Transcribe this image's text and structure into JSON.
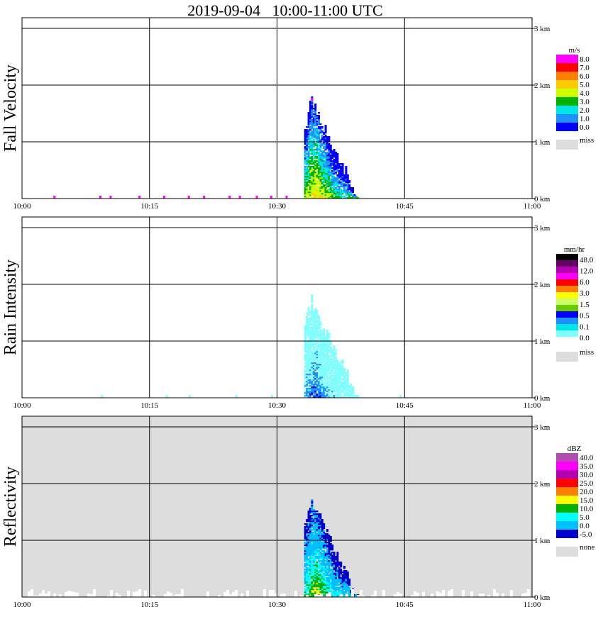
{
  "title": "2019-09-04   10:00-11:00 UTC",
  "x_ticks": [
    "10:00",
    "10:15",
    "10:30",
    "10:45",
    "11:00"
  ],
  "y_ticks": [
    "0 km",
    "1 km",
    "2 km",
    "3 km"
  ],
  "colors": {
    "missing": "#dddddd",
    "grid": "#000000",
    "background": "#ffffff"
  },
  "chart_data": [
    {
      "type": "heatmap",
      "ylabel": "Fall Velocity",
      "xlim": [
        "10:00",
        "11:00"
      ],
      "ylim": [
        0,
        3.0
      ],
      "y_units": "km",
      "grid": true,
      "background": "#ffffff",
      "colorbar": {
        "unit": "m/s",
        "labels": [
          "8.0",
          "7.0",
          "6.0",
          "5.0",
          "4.0",
          "3.0",
          "2.0",
          "1.0",
          "0.0"
        ],
        "colors": [
          "#ff00ff",
          "#ff0000",
          "#ff8000",
          "#ffcc00",
          "#ccff00",
          "#00b300",
          "#00e6e6",
          "#1e90ff",
          "#0000ff"
        ],
        "extra_label": "miss",
        "extra_color": "#dddddd"
      },
      "events": [
        {
          "start": "10:33.2",
          "end": "10:39.5",
          "top_km": 1.82,
          "peak_min": 34.0,
          "tail_min": 37.8,
          "tail_top_km": 0.6,
          "ramp_km": 0.55,
          "inner": [
            "#ffcc00",
            "#ccff00",
            "#00b300",
            "#00e6e6",
            "#1e90ff",
            "#0000ff"
          ],
          "edge_color": "#ff00ff",
          "edge_top_km": 1.7
        }
      ],
      "surface_specks": {
        "color": "#ff00ff",
        "times": [
          "10:03.7",
          "10:09.1",
          "10:10.3",
          "10:13.7",
          "10:16.6",
          "10:19.5",
          "10:21.3",
          "10:24.3",
          "10:25.5",
          "10:27.5",
          "10:29.2",
          "10:31.0"
        ]
      }
    },
    {
      "type": "heatmap",
      "ylabel": "Rain Intensity",
      "xlim": [
        "10:00",
        "11:00"
      ],
      "ylim": [
        0,
        3.0
      ],
      "y_units": "km",
      "grid": true,
      "background": "#ffffff",
      "colorbar": {
        "unit": "mm/hr",
        "labels": [
          "48.0",
          "12.0",
          "6.0",
          "3.0",
          "1.5",
          "0.5",
          "0.1",
          "0.0"
        ],
        "colors": [
          "#000000",
          "#660066",
          "#b300b3",
          "#ff00ff",
          "#ff0000",
          "#ff8000",
          "#ffff00",
          "#ccff66",
          "#66cc00",
          "#0000ff",
          "#1e90ff",
          "#00e6e6",
          "#80ffff",
          "#ffffff"
        ],
        "extra_label": "miss",
        "extra_color": "#dddddd"
      },
      "events": [
        {
          "start": "10:33.2",
          "end": "10:39.5",
          "top_km": 1.82,
          "peak_min": 34.0,
          "tail_min": 37.8,
          "tail_top_km": 0.6,
          "ramp_km": 0.55,
          "inner": [
            "#0000ff",
            "#1e90ff",
            "#80ffff",
            "#80ffff",
            "#80ffff"
          ],
          "edge_color": "#80ffff",
          "edge_top_km": 0.0
        }
      ],
      "surface_specks": {
        "color": "#80ffff",
        "times": [
          "10:09.3",
          "10:16.9",
          "10:19.6",
          "10:25.1",
          "10:29.3",
          "10:44.4"
        ]
      }
    },
    {
      "type": "heatmap",
      "ylabel": "Reflectivity",
      "xlim": [
        "10:00",
        "11:00"
      ],
      "ylim": [
        0,
        3.0
      ],
      "y_units": "km",
      "grid": true,
      "background": "#dddddd",
      "colorbar": {
        "unit": "dBZ",
        "labels": [
          "40.0",
          "35.0",
          "30.0",
          "25.0",
          "20.0",
          "15.0",
          "10.0",
          "5.0",
          "0.0",
          "-5.0"
        ],
        "colors": [
          "#b34db3",
          "#ff00ff",
          "#b300b3",
          "#ff0000",
          "#ff8000",
          "#ffff00",
          "#00b300",
          "#00ffff",
          "#00bfff",
          "#0000cc"
        ],
        "extra_label": "none",
        "extra_color": "#dddddd"
      },
      "events": [
        {
          "start": "10:33.2",
          "end": "10:39.5",
          "top_km": 1.82,
          "peak_min": 34.0,
          "tail_min": 37.8,
          "tail_top_km": 0.6,
          "ramp_km": 0.55,
          "inner": [
            "#ffff00",
            "#00b300",
            "#00ffff",
            "#00bfff",
            "#00bfff",
            "#0000cc"
          ],
          "edge_color": "#0000cc",
          "edge_top_km": 0.0
        }
      ],
      "surface_specks": {
        "color": "#ffffff",
        "times": []
      }
    }
  ]
}
